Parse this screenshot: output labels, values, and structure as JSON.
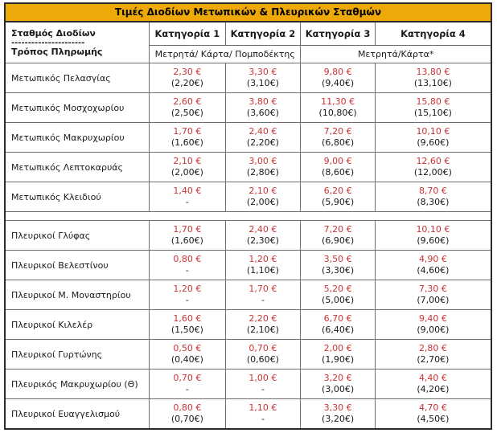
{
  "title": "Τιμές Διοδίων Μετωπικών & Πλευρικών Σταθμών",
  "header": {
    "station_label": "Σταθμός Διοδίων",
    "divider": "----------------------",
    "payment_label": "Τρόπος Πληρωμής",
    "categories": [
      "Κατηγορία 1",
      "Κατηγορία 2",
      "Κατηγορία 3",
      "Κατηγορία 4"
    ],
    "payment_methods": [
      "Μετρητά/ Κάρτα/ Πομποδέκτης",
      "Μετρητά/Κάρτα*"
    ]
  },
  "colors": {
    "accent_gold": "#EDA907",
    "price_red": "#CC3333",
    "text_black": "#1a1a1a",
    "border_gray": "#6e6e6e"
  },
  "sections": [
    {
      "name": "frontal-stations",
      "rows": [
        {
          "station": "Μετωπικός Πελασγίας",
          "prices": [
            [
              "2,30 €",
              "(2,20€)"
            ],
            [
              "3,30 €",
              "(3,10€)"
            ],
            [
              "9,80 €",
              "(9,40€)"
            ],
            [
              "13,80 €",
              "(13,10€)"
            ]
          ]
        },
        {
          "station": "Μετωπικός Μοσχοχωρίου",
          "prices": [
            [
              "2,60 €",
              "(2,50€)"
            ],
            [
              "3,80 €",
              "(3,60€)"
            ],
            [
              "11,30 €",
              "(10,80€)"
            ],
            [
              "15,80 €",
              "(15,10€)"
            ]
          ]
        },
        {
          "station": "Μετωπικός Μακρυχωρίου",
          "prices": [
            [
              "1,70 €",
              "(1,60€)"
            ],
            [
              "2,40 €",
              "(2,20€)"
            ],
            [
              "7,20 €",
              "(6,80€)"
            ],
            [
              "10,10 €",
              "(9,60€)"
            ]
          ]
        },
        {
          "station": "Μετωπικός Λεπτοκαρυάς",
          "prices": [
            [
              "2,10 €",
              "(2,00€)"
            ],
            [
              "3,00 €",
              "(2,80€)"
            ],
            [
              "9,00 €",
              "(8,60€)"
            ],
            [
              "12,60 €",
              "(12,00€)"
            ]
          ]
        },
        {
          "station": "Μετωπικός Κλειδιού",
          "prices": [
            [
              "1,40 €",
              "-"
            ],
            [
              "2,10 €",
              "(2,00€)"
            ],
            [
              "6,20 €",
              "(5,90€)"
            ],
            [
              "8,70 €",
              "(8,30€)"
            ]
          ]
        }
      ]
    },
    {
      "name": "lateral-stations",
      "rows": [
        {
          "station": "Πλευρικοί Γλύφας",
          "prices": [
            [
              "1,70 €",
              "(1,60€)"
            ],
            [
              "2,40 €",
              "(2,30€)"
            ],
            [
              "7,20 €",
              "(6,90€)"
            ],
            [
              "10,10 €",
              "(9,60€)"
            ]
          ]
        },
        {
          "station": "Πλευρικοί Βελεστίνου",
          "prices": [
            [
              "0,80 €",
              "-"
            ],
            [
              "1,20 €",
              "(1,10€)"
            ],
            [
              "3,50 €",
              "(3,30€)"
            ],
            [
              "4,90 €",
              "(4,60€)"
            ]
          ]
        },
        {
          "station": "Πλευρικοί Μ. Μοναστηρίου",
          "prices": [
            [
              "1,20 €",
              "-"
            ],
            [
              "1,70 €",
              "-"
            ],
            [
              "5,20 €",
              "(5,00€)"
            ],
            [
              "7,30 €",
              "(7,00€)"
            ]
          ]
        },
        {
          "station": "Πλευρικοί Κιλελέρ",
          "prices": [
            [
              "1,60 €",
              "(1,50€)"
            ],
            [
              "2,20 €",
              "(2,10€)"
            ],
            [
              "6,70 €",
              "(6,40€)"
            ],
            [
              "9,40 €",
              "(9,00€)"
            ]
          ]
        },
        {
          "station": "Πλευρικοί Γυρτώνης",
          "prices": [
            [
              "0,50 €",
              "(0,40€)"
            ],
            [
              "0,70 €",
              "(0,60€)"
            ],
            [
              "2,00 €",
              "(1,90€)"
            ],
            [
              "2,80 €",
              "(2,70€)"
            ]
          ]
        },
        {
          "station": "Πλευρικός Μακρυχωρίου (Θ)",
          "prices": [
            [
              "0,70 €",
              "-"
            ],
            [
              "1,00 €",
              "-"
            ],
            [
              "3,20 €",
              "(3,00€)"
            ],
            [
              "4,40 €",
              "(4,20€)"
            ]
          ]
        },
        {
          "station": "Πλευρικοί Ευαγγελισμού",
          "prices": [
            [
              "0,80 €",
              "(0,70€)"
            ],
            [
              "1,10 €",
              "-"
            ],
            [
              "3,30 €",
              "(3,20€)"
            ],
            [
              "4,70 €",
              "(4,50€)"
            ]
          ]
        }
      ]
    }
  ]
}
